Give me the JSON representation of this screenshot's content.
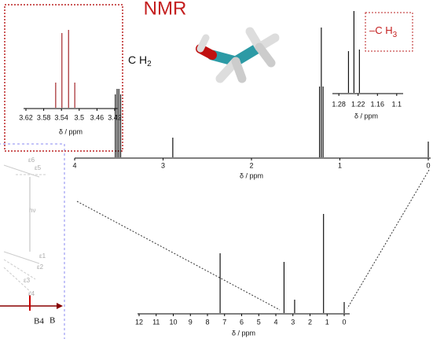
{
  "title": "NMR",
  "annotations": [
    {
      "text": "C H",
      "sub": "2"
    },
    {
      "text": "–C H",
      "sub": "3"
    }
  ],
  "energy_diagram": {
    "labels": [
      "ε6",
      "ε5",
      "hν",
      "ε1",
      "ε2",
      "ε3",
      "ε4",
      "B4",
      "B"
    ]
  },
  "chart_data": [
    {
      "type": "stick",
      "xlabel": "δ / ppm",
      "color": "#a3262a",
      "xlim": [
        3.62,
        3.42
      ],
      "xticks": [
        3.62,
        3.58,
        3.54,
        3.5,
        3.46,
        3.42
      ],
      "ylim": [
        0,
        100
      ],
      "x": [
        3.553,
        3.539,
        3.524,
        3.51
      ],
      "values": [
        32,
        95,
        99,
        32
      ]
    },
    {
      "type": "stick",
      "xlabel": "δ / ppm",
      "color": "#111111",
      "xlim": [
        1.3,
        1.08
      ],
      "xticks": [
        1.28,
        1.22,
        1.16,
        1.1
      ],
      "ylim": [
        0,
        110
      ],
      "x": [
        1.25,
        1.233,
        1.216
      ],
      "values": [
        53,
        104,
        55
      ]
    },
    {
      "type": "stick",
      "xlabel": "δ / ppm",
      "color": "#111111",
      "xlim": [
        4,
        0
      ],
      "xticks": [
        4,
        3,
        2,
        1,
        0
      ],
      "ylim": [
        0,
        170
      ],
      "x": [
        3.54,
        3.52,
        3.5,
        3.48,
        2.89,
        1.23,
        1.21,
        1.19,
        0
      ],
      "values": [
        80,
        87,
        87,
        80,
        25,
        90,
        165,
        90,
        20
      ]
    },
    {
      "type": "stick",
      "xlabel": "δ / ppm",
      "color": "#111111",
      "xlim": [
        12,
        0
      ],
      "xticks": [
        12,
        11,
        10,
        9,
        8,
        7,
        6,
        5,
        4,
        3,
        2,
        1,
        0
      ],
      "ylim": [
        0,
        130
      ],
      "x": [
        7.26,
        3.52,
        2.9,
        1.21,
        0
      ],
      "values": [
        76,
        65,
        17,
        126,
        14
      ]
    }
  ]
}
